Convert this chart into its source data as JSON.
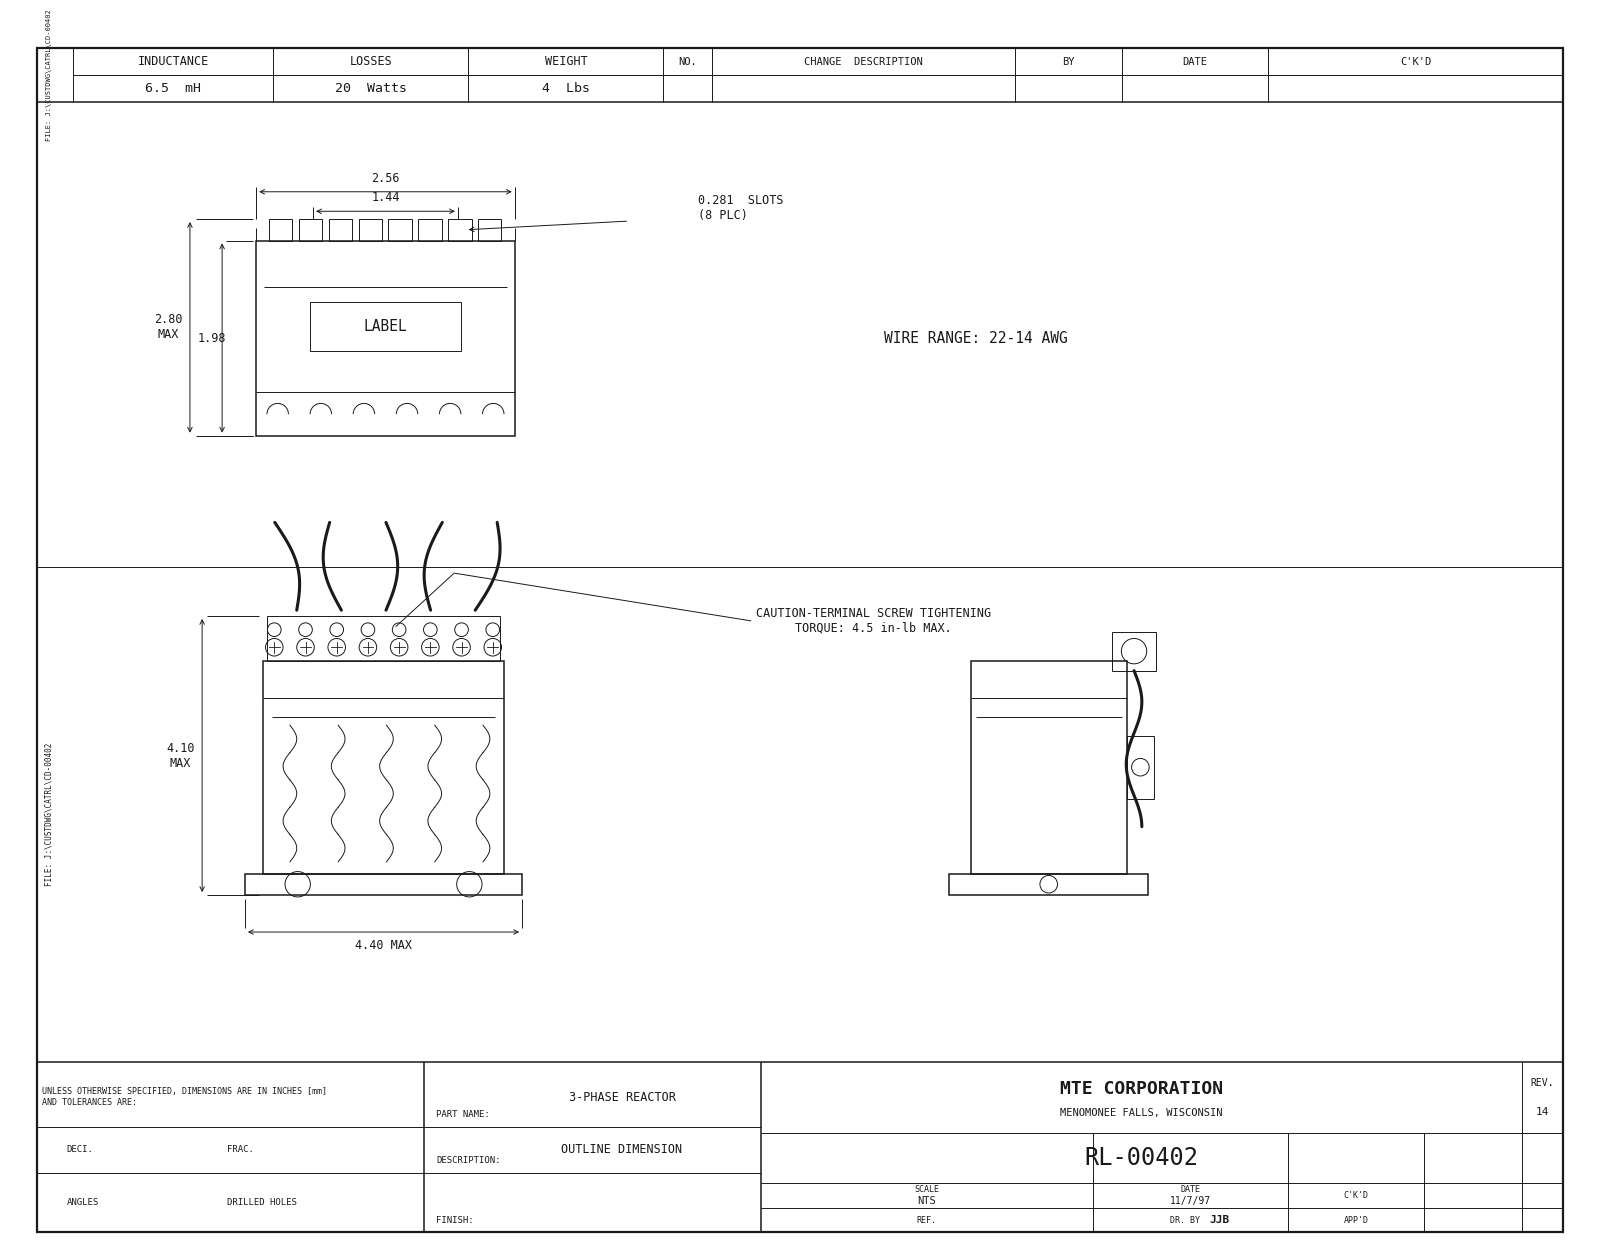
{
  "bg_color": "#ffffff",
  "line_color": "#1a1a1a",
  "title_company": "MTE CORPORATION",
  "title_location": "MENOMONEE FALLS, WISCONSIN",
  "part_number": "RL-00402",
  "part_name": "3-PHASE REACTOR",
  "description": "OUTLINE DIMENSION",
  "scale": "NTS",
  "date": "11/7/97",
  "dr_by": "JJB",
  "inductance_label": "INDUCTANCE",
  "losses_label": "LOSSES",
  "weight_label": "WEIGHT",
  "inductance": "6.5  mH",
  "losses": "20  Watts",
  "weight": "4  Lbs",
  "dim_256": "2.56",
  "dim_144": "1.44",
  "dim_slots": "0.281  SLOTS\n(8 PLC)",
  "dim_280": "2.80\nMAX",
  "dim_198": "1.98",
  "dim_410": "4.10\nMAX",
  "dim_440": "4.40 MAX",
  "wire_range": "WIRE RANGE: 22-14 AWG",
  "caution": "CAUTION-TERMINAL SCREW TIGHTENING\nTORQUE: 4.5 in-lb MAX.",
  "tolerances_line1": "UNLESS OTHERWISE SPECIFIED, DIMENSIONS ARE IN INCHES [mm]",
  "tolerances_line2": "AND TOLERANCES ARE:",
  "deci": "DECI.",
  "frac": "FRAC.",
  "angles": "ANGLES",
  "drilled_holes": "DRILLED HOLES",
  "part_name_label": "PART NAME:",
  "description_label": "DESCRIPTION:",
  "finish_label": "FINISH:",
  "no_label": "NO.",
  "change_desc": "CHANGE  DESCRIPTION",
  "by_label": "BY",
  "date_label": "DATE",
  "ckd_label": "C'K'D",
  "file_text": "FILE: J:\\CUSTDWG\\CATRL\\CD-00402",
  "label_text": "LABEL",
  "rev_label": "REV.",
  "rev_num": "14",
  "scale_label": "SCALE",
  "ref_label": "REF.",
  "dr_by_label": "DR. BY",
  "appd_label": "APP'D"
}
